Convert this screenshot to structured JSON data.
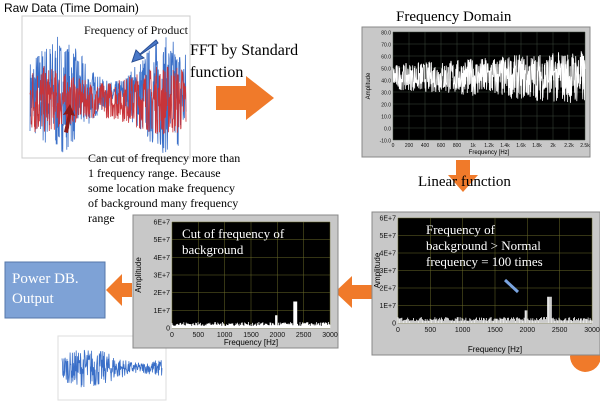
{
  "raw": {
    "title": "Raw Data (Time Domain)",
    "annotation": "Frequency of Product"
  },
  "fft_label": [
    "FFT by Standard",
    "function"
  ],
  "freq_domain": {
    "title": "Frequency Domain",
    "y_label": "Amplitude",
    "x_label": "Frequency [Hz]",
    "yticks": [
      "80.0",
      "70.0",
      "60.0",
      "50.0",
      "40.0",
      "30.0",
      "20.0",
      "10.0",
      "0.0",
      "-10.0"
    ],
    "xticks": [
      "0",
      "200",
      "400",
      "600",
      "800",
      "1k",
      "1.2k",
      "1.4k",
      "1.6k",
      "1.8k",
      "2k",
      "2.2k",
      "2.5k"
    ]
  },
  "linear_label": "Linear function",
  "note": [
    "Can cut of frequency more than",
    "1 frequency range. Because",
    "some location make frequency",
    "of background many frequency",
    "range"
  ],
  "filtered": {
    "annotation": [
      "Frequency of",
      "background > Normal",
      "frequency = 100 times"
    ],
    "y_label": "Amplitude",
    "x_label": "Frequency [Hz]",
    "yticks": [
      "6E+7",
      "5E+7",
      "4E+7",
      "3E+7",
      "2E+7",
      "1E+7",
      "0"
    ],
    "xticks": [
      "0",
      "500",
      "1000",
      "1500",
      "2000",
      "2500",
      "3000"
    ]
  },
  "cut": {
    "annotation": [
      "Cut of frequency of",
      "background"
    ],
    "y_label": "Amplitude",
    "x_label": "Frequency [Hz]",
    "yticks": [
      "6E+7",
      "5E+7",
      "4E+7",
      "3E+7",
      "2E+7",
      "1E+7",
      "0"
    ],
    "xticks": [
      "0",
      "500",
      "1000",
      "1500",
      "2000",
      "2500",
      "3000"
    ]
  },
  "output": [
    "Power DB.",
    "Output"
  ]
}
